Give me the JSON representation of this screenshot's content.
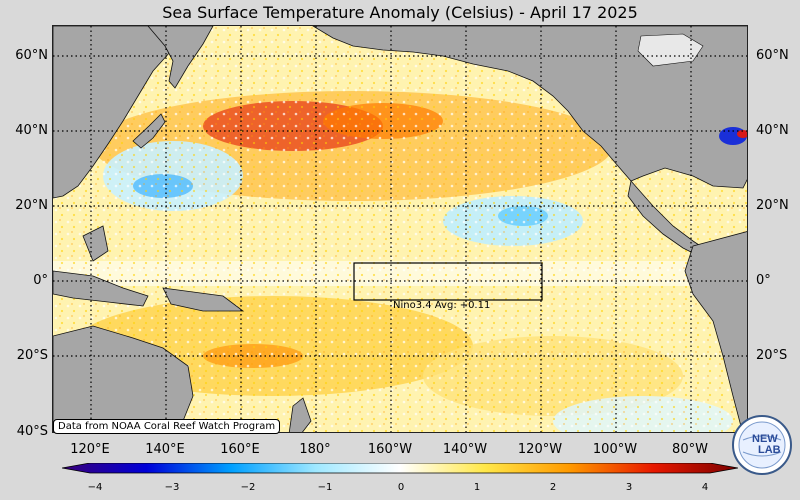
{
  "title": "Sea Surface Temperature Anomaly (Celsius) - April 17 2025",
  "map": {
    "latitude_labels": [
      "60°N",
      "40°N",
      "20°N",
      "0°",
      "20°S",
      "40°S"
    ],
    "longitude_labels": [
      "120°E",
      "140°E",
      "160°E",
      "180°",
      "160°W",
      "140°W",
      "120°W",
      "100°W",
      "80°W"
    ],
    "grid": "dotted",
    "land_color": "#a6a6a6",
    "nino_box": {
      "label": "Nino3.4 Avg:",
      "value": "+0.11"
    }
  },
  "credit": "Data from NOAA Coral Reef Watch Program",
  "colorbar": {
    "ticks": [
      "−4",
      "−3",
      "−2",
      "−1",
      "0",
      "1",
      "2",
      "3",
      "4"
    ],
    "range": [
      -4,
      4
    ],
    "colors": [
      "#3a0078",
      "#0000d8",
      "#00a0ff",
      "#9fe8ff",
      "#ffffff",
      "#ffe84a",
      "#ff9a00",
      "#e81800",
      "#7a0000"
    ]
  },
  "logo": {
    "text_a": "NEW",
    "text_b": "LAB"
  }
}
